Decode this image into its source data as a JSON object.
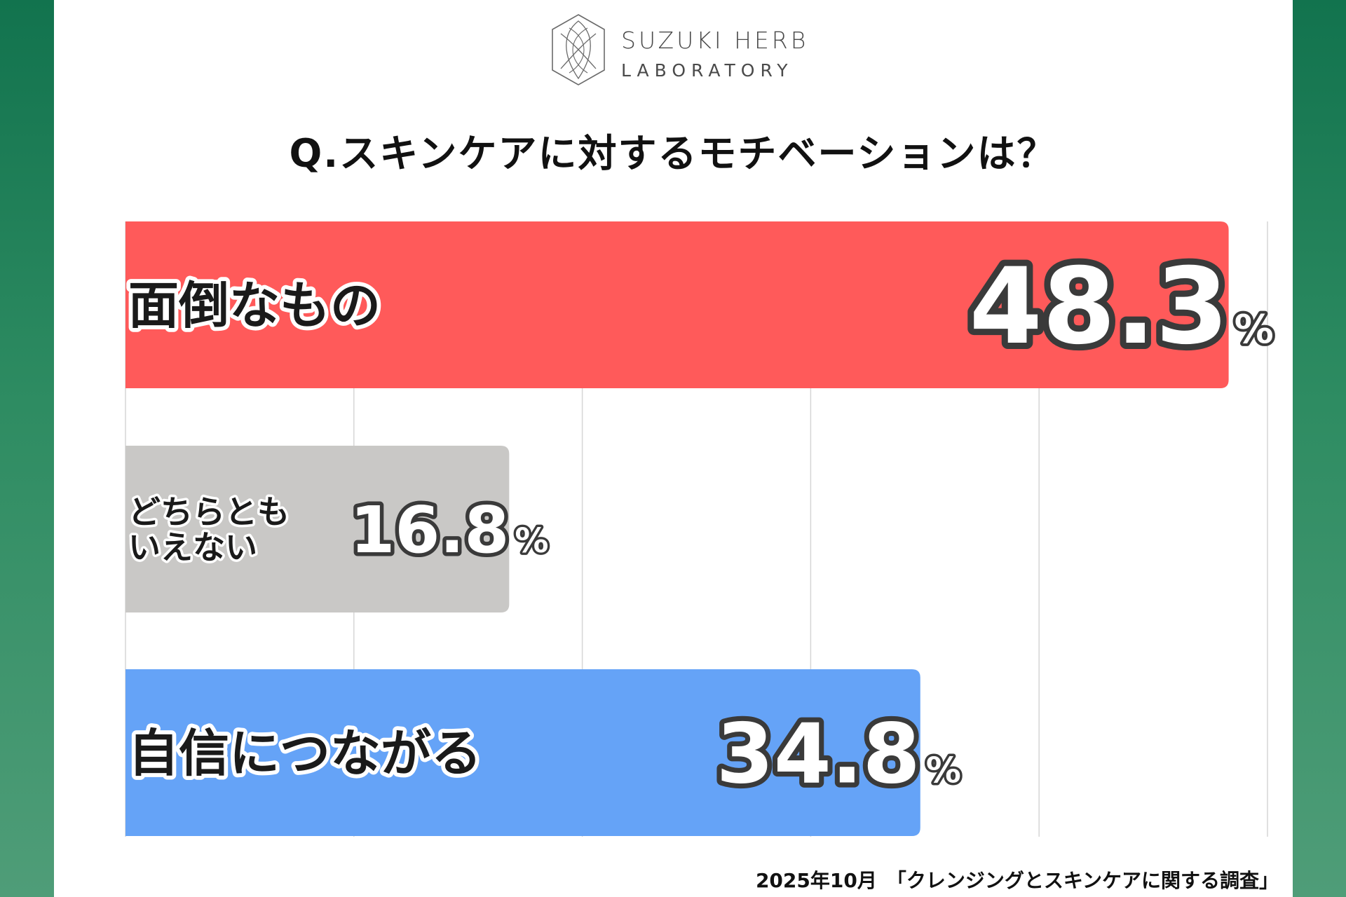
{
  "brand": {
    "line1": "SUZUKI HERB",
    "line2": "LABORATORY"
  },
  "title": "Q.スキンケアに対するモチベーションは？",
  "footer": "2025年10月　「クレンジングとスキンケアに関する調査」",
  "chart_data": {
    "type": "bar",
    "orientation": "horizontal",
    "categories": [
      "面倒なもの",
      "どちらとも\nいえない",
      "自信につながる"
    ],
    "values": [
      48.3,
      16.8,
      34.8
    ],
    "unit": "%",
    "xlim": [
      0,
      50
    ],
    "grid": true,
    "colors": [
      "#ff5a5a",
      "#c9c8c6",
      "#65a3f7"
    ],
    "title": "Q.スキンケアに対するモチベーションは？",
    "xlabel": "",
    "ylabel": ""
  }
}
